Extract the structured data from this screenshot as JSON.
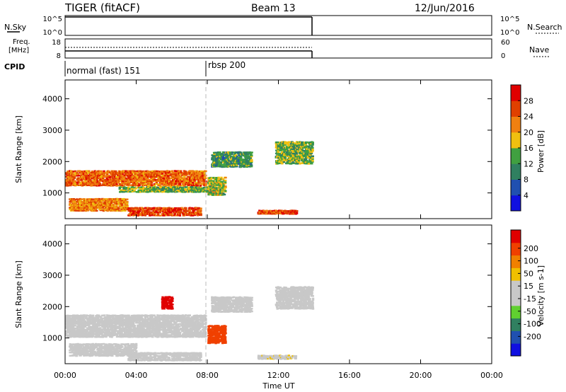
{
  "header": {
    "radar": "TIGER (fitACF)",
    "beam": "Beam 13",
    "date": "12/Jun/2016"
  },
  "noise_panel": {
    "left_label": "N.Sky",
    "right_label": "N.Search",
    "left_ticks": [
      "10^5",
      "10^0"
    ],
    "right_ticks": [
      "10^5",
      "10^0"
    ]
  },
  "freq_panel": {
    "left_label_1": "Freq.",
    "left_label_2": "[MHz]",
    "left_ticks": [
      "18",
      "8"
    ],
    "right_label": "Nave",
    "right_ticks": [
      "60",
      "0"
    ]
  },
  "cpid": {
    "label": "CPID",
    "modes": [
      {
        "name": "normal (fast) 151",
        "start_hour": 0,
        "end_hour": 8
      },
      {
        "name": "rbsp 200",
        "start_hour": 8,
        "end_hour": 14
      }
    ]
  },
  "x_axis": {
    "label": "Time UT",
    "ticks": [
      "00:00",
      "04:00",
      "08:00",
      "12:00",
      "16:00",
      "20:00",
      "00:00"
    ],
    "range_hours": [
      0,
      24
    ]
  },
  "colors": {
    "power_scale": [
      "#1010e0",
      "#2050b0",
      "#308060",
      "#40a040",
      "#f0c010",
      "#f08010",
      "#e04000",
      "#e00000"
    ],
    "velocity_scale": [
      "#e00000",
      "#f04000",
      "#f08000",
      "#f0c000",
      "#c8c8c8",
      "#c8c8c8",
      "#60d030",
      "#308060",
      "#2050b0",
      "#1010e0"
    ]
  },
  "chart_data": [
    {
      "type": "heatmap",
      "name": "power",
      "ylabel": "Slant Range [km]",
      "yticks": [
        "1000",
        "2000",
        "3000",
        "4000"
      ],
      "ylim": [
        180,
        4600
      ],
      "xlim": [
        0,
        24
      ],
      "colorbar_label": "Power [dB]",
      "colorbar_ticks": [
        "4",
        "8",
        "12",
        "16",
        "20",
        "24",
        "28"
      ],
      "clim": [
        0,
        32
      ],
      "bands": [
        {
          "t0": 0.0,
          "t1": 7.9,
          "r0": 1200,
          "r1": 1700,
          "v": 24
        },
        {
          "t0": 0.2,
          "t1": 3.5,
          "r0": 400,
          "r1": 800,
          "v": 22
        },
        {
          "t0": 3.5,
          "t1": 7.6,
          "r0": 250,
          "r1": 500,
          "v": 26
        },
        {
          "t0": 3.0,
          "t1": 8.0,
          "r0": 1000,
          "r1": 1200,
          "v": 14
        },
        {
          "t0": 8.2,
          "t1": 10.5,
          "r0": 1800,
          "r1": 2300,
          "v": 12
        },
        {
          "t0": 11.8,
          "t1": 13.9,
          "r0": 1900,
          "r1": 2600,
          "v": 14
        },
        {
          "t0": 10.8,
          "t1": 13.0,
          "r0": 300,
          "r1": 450,
          "v": 26
        },
        {
          "t0": 8.0,
          "t1": 9.0,
          "r0": 900,
          "r1": 1500,
          "v": 16
        }
      ]
    },
    {
      "type": "heatmap",
      "name": "velocity",
      "ylabel": "Slant Range [km]",
      "yticks": [
        "1000",
        "2000",
        "3000",
        "4000"
      ],
      "ylim": [
        180,
        4600
      ],
      "xlim": [
        0,
        24
      ],
      "colorbar_label": "Velocity [m s-1]",
      "colorbar_ticks": [
        "200",
        "100",
        "50",
        "15",
        "-15",
        "-50",
        "-100",
        "-200"
      ],
      "clim": [
        -250,
        250
      ],
      "bands": [
        {
          "t0": 0.0,
          "t1": 7.9,
          "r0": 1000,
          "r1": 1700,
          "v": 0
        },
        {
          "t0": 0.2,
          "t1": 4.0,
          "r0": 400,
          "r1": 800,
          "v": 0
        },
        {
          "t0": 3.5,
          "t1": 7.6,
          "r0": 250,
          "r1": 500,
          "v": -30
        },
        {
          "t0": 8.2,
          "t1": 10.5,
          "r0": 1800,
          "r1": 2300,
          "v": -20
        },
        {
          "t0": 11.8,
          "t1": 13.9,
          "r0": 1900,
          "r1": 2600,
          "v": 0
        },
        {
          "t0": 10.8,
          "t1": 13.0,
          "r0": 300,
          "r1": 450,
          "v": 40
        },
        {
          "t0": 5.4,
          "t1": 6.0,
          "r0": 1900,
          "r1": 2300,
          "v": 220
        },
        {
          "t0": 8.0,
          "t1": 9.0,
          "r0": 800,
          "r1": 1400,
          "v": 180
        }
      ]
    }
  ]
}
